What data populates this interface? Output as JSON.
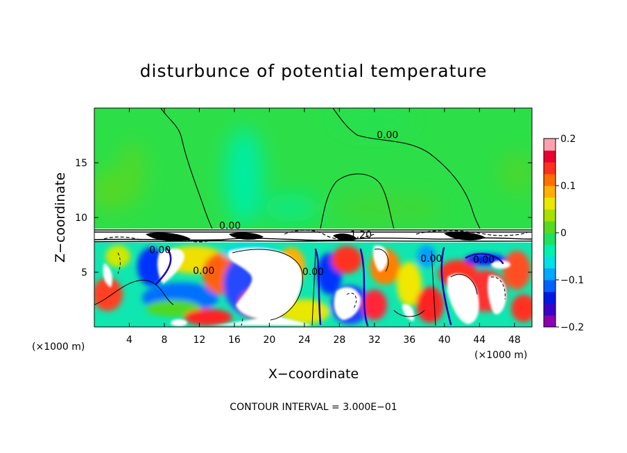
{
  "chart_data": {
    "type": "heatmap",
    "title": "disturbunce of potential temperature",
    "xlabel": "X−coordinate",
    "ylabel": "Z−coordinate",
    "x_unit": "(×1000 m)",
    "y_unit": "(×1000 m)",
    "xlim": [
      0,
      50
    ],
    "ylim": [
      0,
      20
    ],
    "x_ticks": [
      4,
      8,
      12,
      16,
      20,
      24,
      28,
      32,
      36,
      40,
      44,
      48
    ],
    "y_ticks": [
      5,
      10,
      15
    ],
    "colorbar": {
      "range": [
        -0.2,
        0.2
      ],
      "ticks": [
        {
          "value": 0.2,
          "label": "0.2"
        },
        {
          "value": 0.1,
          "label": "0.1"
        },
        {
          "value": 0.0,
          "label": "0"
        },
        {
          "value": -0.1,
          "label": "−0.1"
        },
        {
          "value": -0.2,
          "label": "−0.2"
        }
      ],
      "colors": [
        "#8a00b0",
        "#3c00c8",
        "#0018e0",
        "#0060ff",
        "#00a8ff",
        "#00e0e8",
        "#00f0b0",
        "#20e060",
        "#5ad820",
        "#a8e000",
        "#e8e800",
        "#ffb000",
        "#ff7000",
        "#ff3020",
        "#e80030",
        "#ffa0b0"
      ]
    },
    "contour_labels": [
      {
        "x": 33.5,
        "z": 17.5,
        "text": "0.00"
      },
      {
        "x": 15.5,
        "z": 9.2,
        "text": "0.00"
      },
      {
        "x": 12.5,
        "z": 5.1,
        "text": "0.00"
      },
      {
        "x": 30.0,
        "z": 8.4,
        "text": "−1.20"
      },
      {
        "x": 44.5,
        "z": 6.1,
        "text": "0.00"
      },
      {
        "x": 7.5,
        "z": 7.0,
        "text": "0.00"
      },
      {
        "x": 25.0,
        "z": 5.0,
        "text": "0.00"
      },
      {
        "x": 38.5,
        "z": 6.2,
        "text": "0.00"
      }
    ],
    "contour_interval_text": "CONTOUR INTERVAL = 3.000E−01"
  }
}
